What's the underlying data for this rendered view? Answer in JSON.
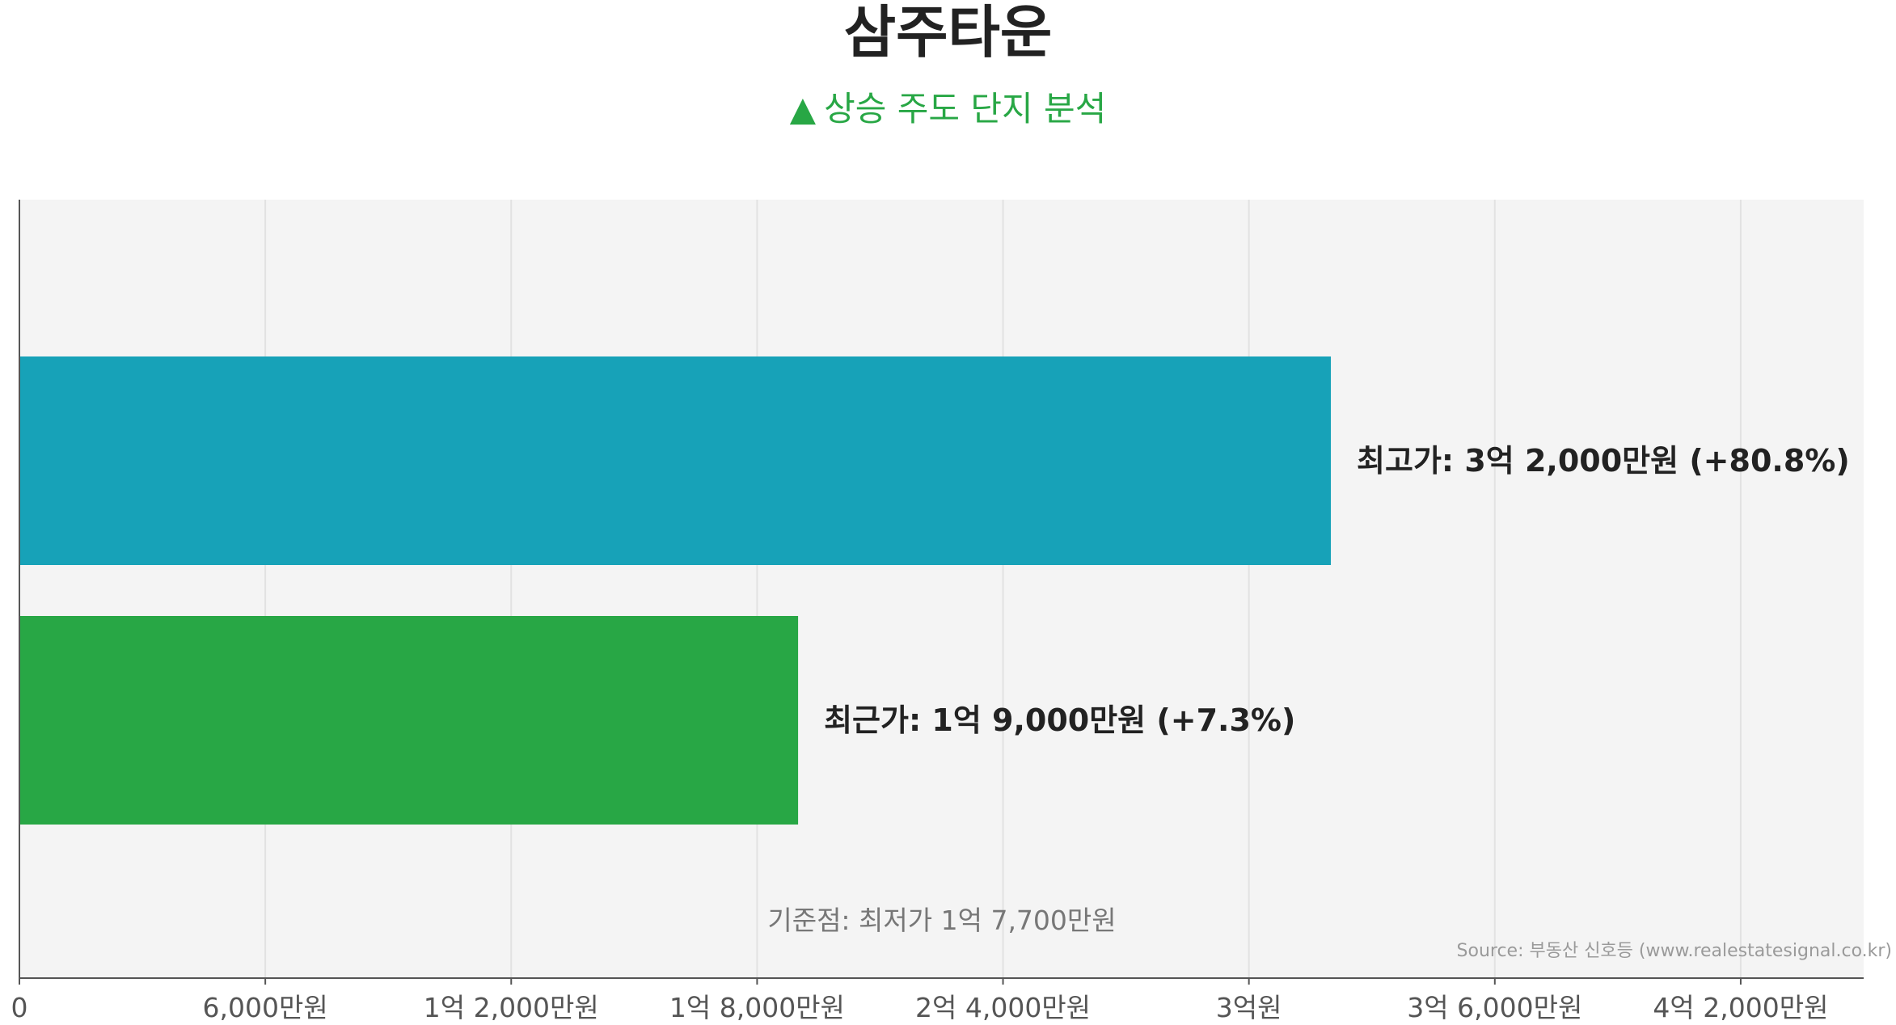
{
  "title": "삼주타운",
  "subtitle": {
    "icon": "triangle-up-icon",
    "text": "상승 주도 단지 분석",
    "color": "#28a745"
  },
  "source": "Source: 부동산 신호등 (www.realestatesignal.co.kr)",
  "chart_data": {
    "type": "bar",
    "orientation": "horizontal",
    "unit": "만원",
    "xlim": [
      0,
      45000
    ],
    "grid": true,
    "background": "#f4f4f4",
    "ticks": [
      {
        "value": 0,
        "label": "0"
      },
      {
        "value": 6000,
        "label": "6,000만원"
      },
      {
        "value": 12000,
        "label": "1억 2,000만원"
      },
      {
        "value": 18000,
        "label": "1억 8,000만원"
      },
      {
        "value": 24000,
        "label": "2억 4,000만원"
      },
      {
        "value": 30000,
        "label": "3억원"
      },
      {
        "value": 36000,
        "label": "3억 6,000만원"
      },
      {
        "value": 42000,
        "label": "4억 2,000만원"
      }
    ],
    "bars": [
      {
        "name": "최고가",
        "value": 32000,
        "label": "최고가: 3억 2,000만원 (+80.8%)",
        "color": "#17a2b8"
      },
      {
        "name": "최근가",
        "value": 19000,
        "label": "최근가: 1억 9,000만원 (+7.3%)",
        "color": "#28a745"
      }
    ],
    "reference": {
      "name": "최저가",
      "value": 17700,
      "label": "기준점: 최저가 1억 7,700만원"
    }
  }
}
